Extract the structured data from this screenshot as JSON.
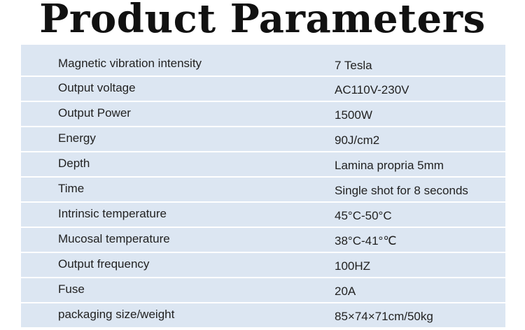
{
  "header": {
    "title": "Product Parameters"
  },
  "table": {
    "rows": [
      [
        "Magnetic vibration intensity",
        "7 Tesla"
      ],
      [
        "Output voltage",
        "AC110V-230V"
      ],
      [
        "Output Power",
        "1500W"
      ],
      [
        "Energy",
        "90J/cm2"
      ],
      [
        "Depth",
        "Lamina propria 5mm"
      ],
      [
        "Time",
        "Single shot for 8 seconds"
      ],
      [
        "Intrinsic temperature",
        "45°C-50°C"
      ],
      [
        "Mucosal temperature",
        "38°C-41°℃"
      ],
      [
        "Output frequency",
        "100HZ"
      ],
      [
        "Fuse",
        "20A"
      ],
      [
        "packaging size/weight",
        "85×74×71cm/50kg"
      ]
    ]
  }
}
